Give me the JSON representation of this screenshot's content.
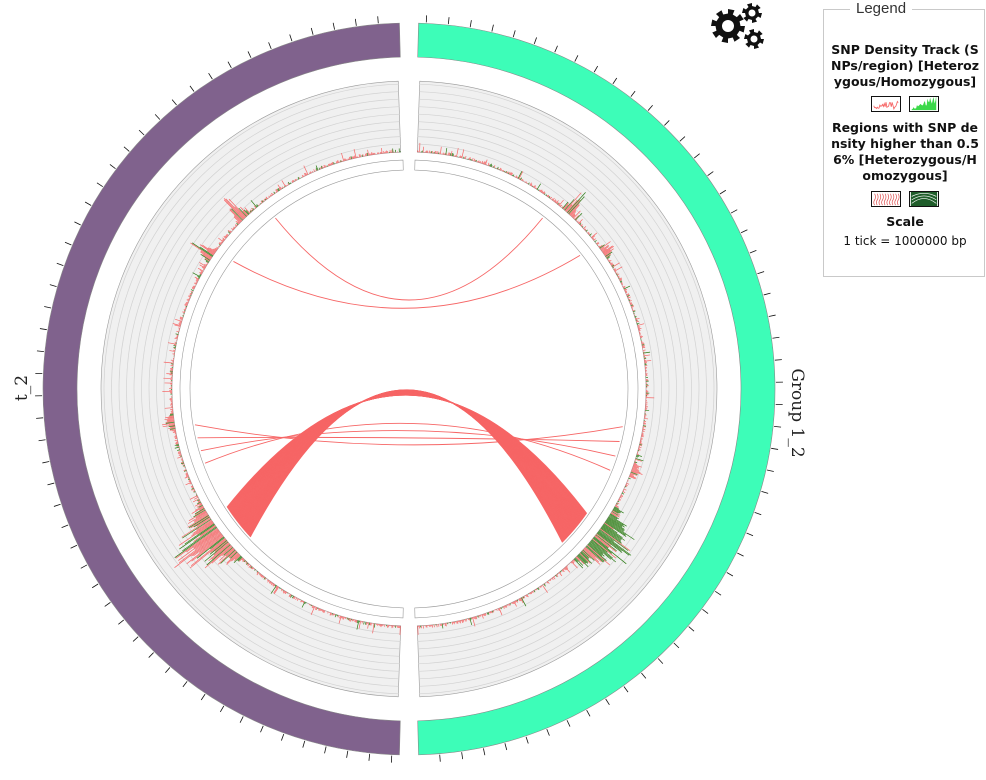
{
  "chromosomes": [
    {
      "label": "t_2",
      "color": "#80628d"
    },
    {
      "label": "Group 1_2",
      "color": "#3dfdb8"
    }
  ],
  "colors": {
    "heterozygous": "#f66666",
    "homozygous": "#2e7d16",
    "homozygous_swatch": "#3cd94a",
    "track_background": "#f0f0f0",
    "track_grid": "#d2d2d2"
  },
  "legend": {
    "title": "Legend",
    "density_label": "SNP Density Track (SNPs/region) [Heterozygous/Homozygous]",
    "regions_label": "Regions with SNP density higher than 0.56% [Heterozygous/Homozygous]",
    "scale_title": "Scale",
    "scale_text": "1 tick = 1000000 bp"
  },
  "icons": {
    "settings": "gears-icon"
  }
}
